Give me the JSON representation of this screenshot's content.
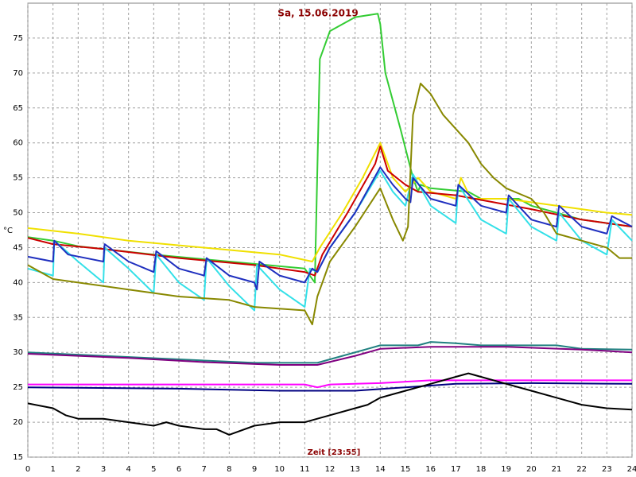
{
  "chart_data": {
    "type": "line",
    "title": "Sa, 15.06.2019",
    "x_label": "Zeit [23:55]",
    "y_label": "°C",
    "xlim": [
      0,
      24
    ],
    "xticks": [
      0,
      1,
      2,
      3,
      4,
      5,
      6,
      7,
      8,
      9,
      10,
      11,
      12,
      13,
      14,
      15,
      16,
      17,
      18,
      19,
      20,
      21,
      22,
      23,
      24
    ],
    "ylim": [
      15,
      80
    ],
    "yticks": [
      15,
      20,
      25,
      30,
      35,
      40,
      45,
      50,
      55,
      60,
      65,
      70,
      75
    ],
    "grid": true,
    "series": [
      {
        "color": "#33cc33",
        "x": [
          0,
          1,
          2,
          5,
          8,
          11,
          11.4,
          11.6,
          12,
          12.5,
          13,
          13.9,
          14,
          14.2,
          14.8,
          15.3,
          15.5,
          15.6,
          16,
          17.5,
          18,
          19.5,
          20,
          21,
          22,
          24
        ],
        "values": [
          46.5,
          46,
          45.2,
          44,
          43,
          42,
          40,
          72,
          76,
          77,
          78,
          78.5,
          77,
          70,
          62,
          55,
          53,
          54,
          53.5,
          53,
          52,
          52,
          51,
          50,
          49,
          48
        ]
      },
      {
        "color": "#f0e000",
        "x": [
          0,
          2,
          4,
          7,
          10,
          11.3,
          11.6,
          12.5,
          13.3,
          14,
          14.5,
          15,
          15.5,
          16,
          17,
          17.2,
          17.6,
          19,
          20,
          21,
          22,
          23,
          24
        ],
        "values": [
          47.8,
          47,
          46,
          45,
          44,
          43,
          45,
          50,
          55,
          60,
          55,
          53,
          55,
          53,
          52,
          55,
          52,
          52,
          51.5,
          51,
          50.5,
          50,
          49.7
        ]
      },
      {
        "color": "#cc0000",
        "x": [
          0,
          1,
          3,
          6,
          9,
          11,
          11.4,
          11.7,
          12.7,
          13.8,
          14,
          14.3,
          15,
          15.5,
          17,
          18.5,
          20,
          22,
          24
        ],
        "values": [
          46.4,
          45.5,
          44.8,
          43.5,
          42.5,
          41.5,
          41,
          44,
          50,
          57,
          59.5,
          56,
          54,
          53,
          52.5,
          51.5,
          50.5,
          49,
          48
        ]
      },
      {
        "color": "#33e0e8",
        "x": [
          0,
          1,
          1.05,
          2,
          3,
          3.05,
          4,
          5,
          5.1,
          6,
          7,
          7.1,
          8,
          9,
          9.1,
          10,
          11,
          11.2,
          11.5,
          12,
          13,
          14,
          14.5,
          15,
          15.3,
          16,
          17,
          17.1,
          18,
          19,
          19.1,
          20,
          21,
          21.1,
          22,
          23,
          23.2,
          24
        ],
        "values": [
          42,
          41,
          46,
          43,
          40,
          45,
          42,
          38.5,
          44,
          40,
          37.5,
          43.5,
          39.5,
          36,
          42.5,
          39,
          36.5,
          42,
          41.5,
          45,
          50,
          56,
          53,
          51,
          55.5,
          51,
          48.5,
          54,
          49,
          47,
          52,
          48,
          46,
          50,
          46,
          44,
          49,
          46
        ]
      },
      {
        "color": "#1f2fbf",
        "x": [
          0,
          1,
          1.05,
          1.6,
          3,
          3.05,
          4,
          5,
          5.1,
          6,
          7,
          7.1,
          8,
          9,
          9.1,
          9.2,
          10,
          11,
          11.3,
          11.5,
          12,
          13,
          14,
          14.5,
          15,
          15.2,
          15.3,
          16,
          17,
          17.1,
          18,
          19,
          19.1,
          20,
          21,
          21.1,
          22,
          23,
          23.2,
          24
        ],
        "values": [
          43.7,
          43,
          46,
          44,
          43,
          45.5,
          43,
          41.5,
          44.5,
          42,
          41,
          43.5,
          41,
          40,
          39,
          43,
          41,
          40,
          42,
          41.5,
          45,
          50,
          56.5,
          54,
          52,
          51.5,
          55,
          52,
          51,
          54,
          51,
          50,
          52.5,
          49,
          48,
          51,
          48,
          47,
          49.5,
          48
        ]
      },
      {
        "color": "#888800",
        "x": [
          0,
          1,
          2,
          4,
          6,
          8,
          9,
          11,
          11.3,
          11.5,
          12,
          13,
          14,
          14.5,
          14.9,
          15.1,
          15.3,
          15.6,
          16,
          16.5,
          17,
          17.5,
          18,
          18.5,
          19,
          20,
          20.5,
          21,
          22,
          23,
          23.5,
          24
        ],
        "values": [
          42.5,
          40.5,
          40,
          39,
          38,
          37.5,
          36.5,
          36,
          34,
          38,
          43,
          48,
          53.5,
          49,
          46,
          48,
          64,
          68.5,
          67,
          64,
          62,
          60,
          57,
          55,
          53.5,
          52,
          50,
          47,
          46,
          45,
          43.5,
          43.5
        ]
      },
      {
        "color": "#208080",
        "x": [
          0,
          3,
          6,
          9,
          11.5,
          12.5,
          13.5,
          14,
          15.5,
          16,
          17,
          18,
          21,
          22,
          24
        ],
        "values": [
          30,
          29.5,
          29,
          28.5,
          28.5,
          29.5,
          30.5,
          31,
          31,
          31.5,
          31.3,
          31,
          31,
          30.5,
          30.4
        ]
      },
      {
        "color": "#800080",
        "x": [
          0,
          4,
          7,
          10,
          11.5,
          13,
          14,
          16,
          19,
          22,
          24
        ],
        "values": [
          29.8,
          29.2,
          28.6,
          28.2,
          28.2,
          29.5,
          30.5,
          30.8,
          30.8,
          30.4,
          30
        ]
      },
      {
        "color": "#ff00ff",
        "x": [
          0,
          11,
          11.5,
          12,
          14,
          16,
          24
        ],
        "values": [
          25.4,
          25.4,
          25,
          25.4,
          25.6,
          26,
          26
        ]
      },
      {
        "color": "#000080",
        "x": [
          0,
          6,
          10,
          13,
          15,
          17,
          20,
          24
        ],
        "values": [
          25,
          24.8,
          24.5,
          24.5,
          25,
          25.5,
          25.6,
          25.5
        ]
      },
      {
        "color": "#000000",
        "x": [
          0,
          1,
          1.5,
          2,
          3,
          4,
          5,
          5.5,
          6,
          7,
          7.5,
          8,
          9,
          10,
          11,
          11.5,
          12,
          13,
          13.5,
          14,
          14.5,
          15,
          15.5,
          16,
          17,
          17.5,
          18,
          19,
          20,
          21,
          22,
          23,
          24
        ],
        "values": [
          22.7,
          22,
          21,
          20.5,
          20.5,
          20,
          19.5,
          20,
          19.5,
          19,
          19,
          18.2,
          19.5,
          20,
          20,
          20.5,
          21,
          22,
          22.5,
          23.5,
          24,
          24.5,
          25,
          25.5,
          26.5,
          27,
          26.5,
          25.5,
          24.5,
          23.5,
          22.5,
          22,
          21.8
        ]
      }
    ]
  }
}
